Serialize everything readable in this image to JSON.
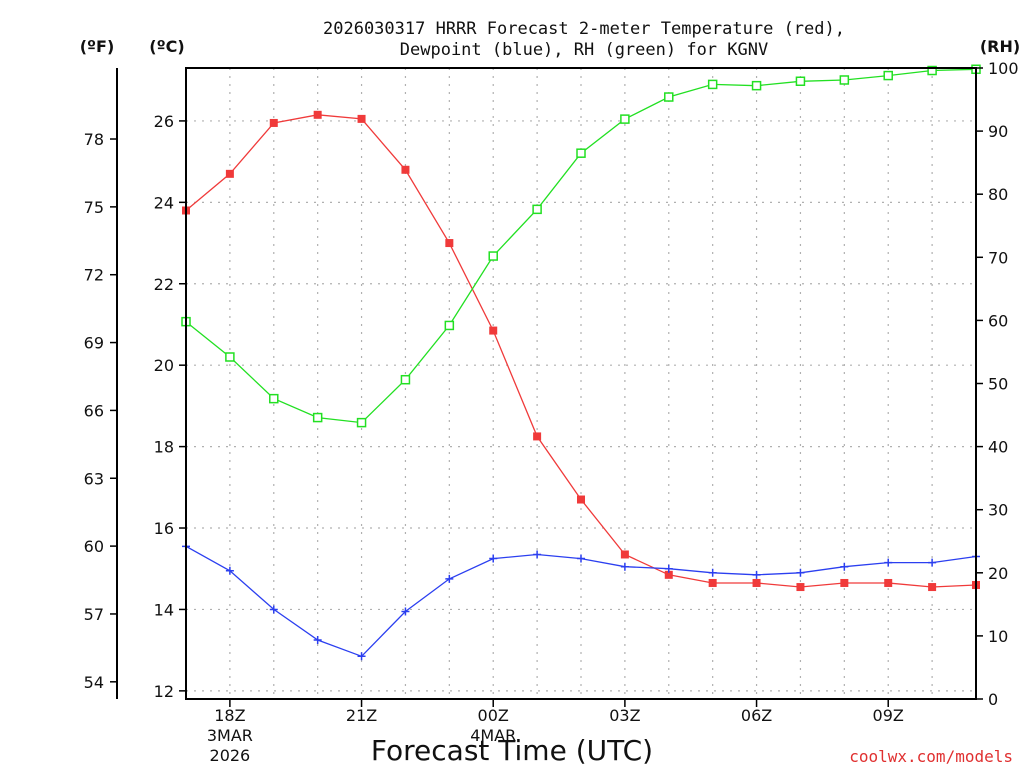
{
  "chart_data": {
    "type": "line",
    "title_line1": "2026030317 HRRR Forecast 2-meter Temperature (red),",
    "title_line2": "Dewpoint (blue), RH (green) for KGNV",
    "xlabel": "Forecast Time (UTC)",
    "watermark": "coolwx.com/models",
    "axis_units": {
      "left_f": "(ºF)",
      "left_c": "(ºC)",
      "right_rh": "(RH)"
    },
    "x_hours": [
      17,
      18,
      19,
      20,
      21,
      22,
      23,
      24,
      25,
      26,
      27,
      28,
      29,
      30,
      31,
      32,
      33,
      34,
      35
    ],
    "xlim": [
      17,
      35
    ],
    "x_ticks": [
      {
        "hour": 18,
        "label": "18Z",
        "sub1": "3MAR",
        "sub2": "2026"
      },
      {
        "hour": 21,
        "label": "21Z",
        "sub1": "",
        "sub2": ""
      },
      {
        "hour": 24,
        "label": "00Z",
        "sub1": "4MAR",
        "sub2": ""
      },
      {
        "hour": 27,
        "label": "03Z",
        "sub1": "",
        "sub2": ""
      },
      {
        "hour": 30,
        "label": "06Z",
        "sub1": "",
        "sub2": ""
      },
      {
        "hour": 33,
        "label": "09Z",
        "sub1": "",
        "sub2": ""
      }
    ],
    "ylim_c": [
      11.8,
      27.3
    ],
    "yticks_c": [
      12,
      14,
      16,
      18,
      20,
      22,
      24,
      26
    ],
    "yticks_f": [
      54,
      57,
      60,
      63,
      66,
      69,
      72,
      75,
      78
    ],
    "ylim_rh": [
      0,
      100
    ],
    "yticks_rh": [
      0,
      10,
      20,
      30,
      40,
      50,
      60,
      70,
      80,
      90,
      100
    ],
    "series": [
      {
        "name": "Temperature",
        "axis": "c",
        "color": "#f03a3a",
        "marker": "filled-square",
        "values": [
          23.8,
          24.7,
          25.95,
          26.15,
          26.05,
          24.8,
          23.0,
          20.85,
          18.25,
          16.7,
          15.35,
          14.85,
          14.65,
          14.65,
          14.55,
          14.65,
          14.65,
          14.55,
          14.6
        ]
      },
      {
        "name": "Dewpoint",
        "axis": "c",
        "color": "#2b3ff0",
        "marker": "plus",
        "values": [
          15.55,
          14.95,
          14.0,
          13.25,
          12.85,
          13.95,
          14.75,
          15.25,
          15.35,
          15.25,
          15.05,
          15.0,
          14.9,
          14.85,
          14.9,
          15.05,
          15.15,
          15.15,
          15.3
        ]
      },
      {
        "name": "RH",
        "axis": "rh",
        "color": "#22e022",
        "marker": "open-square",
        "values": [
          59.8,
          54.2,
          47.6,
          44.6,
          43.8,
          50.6,
          59.2,
          70.2,
          77.6,
          86.5,
          91.9,
          95.4,
          97.4,
          97.2,
          97.9,
          98.1,
          98.8,
          99.6,
          99.8
        ]
      }
    ]
  }
}
